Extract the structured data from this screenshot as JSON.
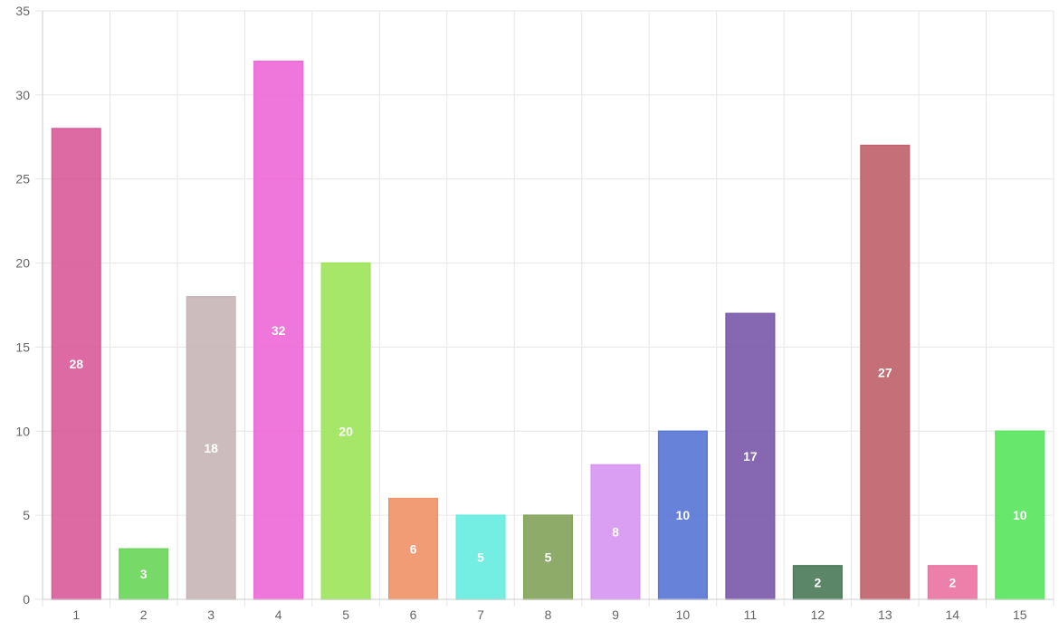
{
  "chart_data": {
    "type": "bar",
    "categories": [
      "1",
      "2",
      "3",
      "4",
      "5",
      "6",
      "7",
      "8",
      "9",
      "10",
      "11",
      "12",
      "13",
      "14",
      "15"
    ],
    "values": [
      28,
      3,
      18,
      32,
      20,
      6,
      5,
      5,
      8,
      10,
      17,
      2,
      27,
      2,
      10
    ],
    "colors": [
      "#da5d9b",
      "#6bd65b",
      "#c8b6b8",
      "#ee6ad7",
      "#9ee55c",
      "#f1946a",
      "#68ede1",
      "#84a45c",
      "#d796f2",
      "#5a78d6",
      "#7b5aab",
      "#4d7c5b",
      "#c0646d",
      "#ec75a3",
      "#5ae661"
    ],
    "ylim": [
      0,
      35
    ],
    "yticks": [
      "0",
      "5",
      "10",
      "15",
      "20",
      "25",
      "30",
      "35"
    ],
    "grid": true,
    "data_labels": true,
    "legend": "none"
  }
}
